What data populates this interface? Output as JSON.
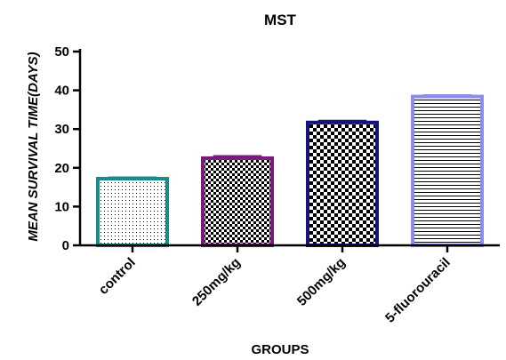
{
  "chart_data": {
    "type": "bar",
    "title": "MST",
    "xlabel": "GROUPS",
    "ylabel": "MEAN SURVIVAL TIME(DAYS)",
    "ylim": [
      0,
      50
    ],
    "yticks": [
      0,
      10,
      20,
      30,
      40,
      50
    ],
    "grid": false,
    "categories": [
      "control",
      "250mg/kg",
      "500mg/kg",
      "5-fluorouracil"
    ],
    "values": [
      17.2,
      22.5,
      31.7,
      38.4
    ],
    "errors": [
      0.3,
      0.5,
      0.4,
      0.3
    ],
    "bar_colors": [
      "#1a8a8a",
      "#7a1a7a",
      "#14147a",
      "#8c8cf0"
    ],
    "bar_patterns": [
      "fine-dots",
      "checker-small",
      "checker-large",
      "horizontal-lines"
    ],
    "text_color": "#14147a",
    "axis_color": "#000000"
  }
}
